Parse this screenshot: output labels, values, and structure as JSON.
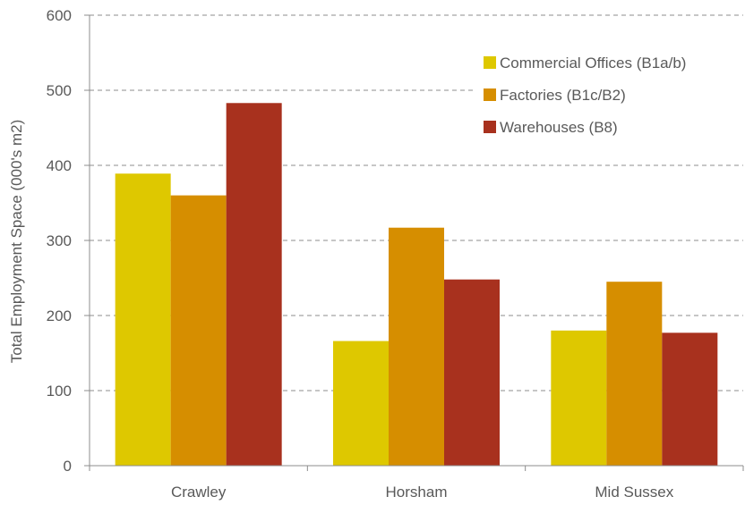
{
  "chart_data": {
    "type": "bar",
    "title": "",
    "xlabel": "",
    "ylabel": "Total Employment Space (000's m2)",
    "categories": [
      "Crawley",
      "Horsham",
      "Mid Sussex"
    ],
    "series": [
      {
        "name": "Commercial Offices (B1a/b)",
        "color": "#dec800",
        "values": [
          389,
          166,
          180
        ]
      },
      {
        "name": "Factories (B1c/B2)",
        "color": "#d68e00",
        "values": [
          360,
          317,
          245
        ]
      },
      {
        "name": "Warehouses (B8)",
        "color": "#a8311e",
        "values": [
          483,
          248,
          177
        ]
      }
    ],
    "ylim": [
      0,
      600
    ],
    "yticks": [
      0,
      100,
      200,
      300,
      400,
      500,
      600
    ],
    "grid": true,
    "legend_position": "top-right"
  }
}
